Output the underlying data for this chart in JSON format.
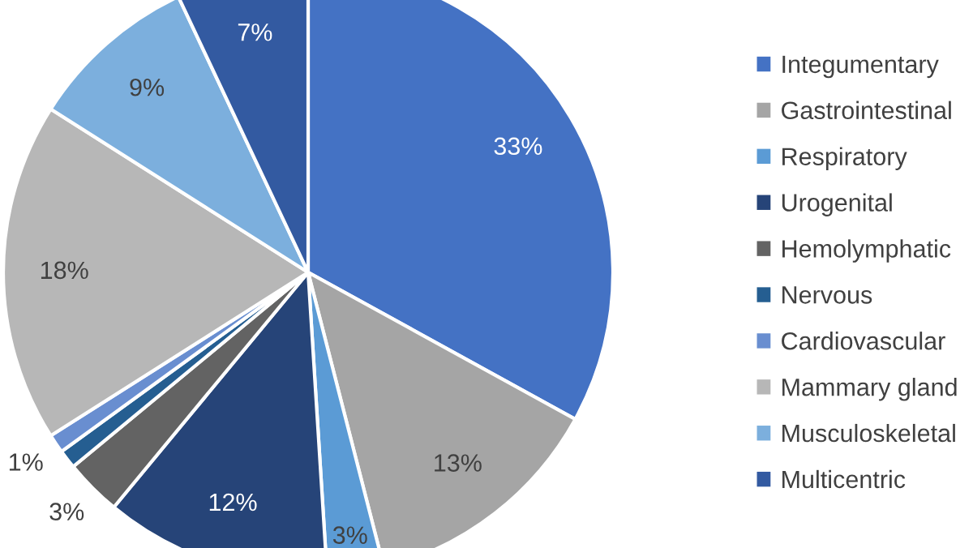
{
  "chart_data": {
    "type": "pie",
    "categories": [
      "Integumentary",
      "Gastrointestinal",
      "Respiratory",
      "Urogenital",
      "Hemolymphatic",
      "Nervous",
      "Cardiovascular",
      "Mammary gland",
      "Musculoskeletal",
      "Multicentric"
    ],
    "values": [
      33,
      13,
      3,
      12,
      3,
      1,
      1,
      18,
      9,
      7
    ],
    "value_labels": [
      "33%",
      "13%",
      "3%",
      "12%",
      "3%",
      null,
      "1%",
      "18%",
      "9%",
      "7%"
    ],
    "colors": [
      "#4472c4",
      "#a5a5a5",
      "#5b9bd5",
      "#264478",
      "#636363",
      "#255e91",
      "#698ed0",
      "#b7b7b7",
      "#7cafdd",
      "#335aa1"
    ],
    "legend": "right"
  }
}
